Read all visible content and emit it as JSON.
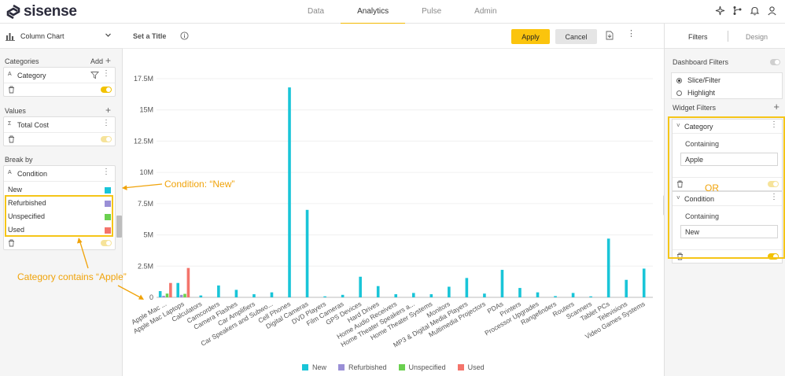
{
  "app": {
    "logo_text": "sisense",
    "nav": [
      "Data",
      "Analytics",
      "Pulse",
      "Admin"
    ],
    "nav_active": 1
  },
  "left": {
    "widget_type": "Column Chart",
    "categories": {
      "title": "Categories",
      "add_label": "Add",
      "field_type": "A",
      "field": "Category"
    },
    "values": {
      "title": "Values",
      "field_type": "Σ",
      "field": "Total Cost"
    },
    "breakby": {
      "title": "Break by",
      "field_type": "A",
      "field": "Condition",
      "items": [
        {
          "label": "New",
          "color": "#19c5d8"
        },
        {
          "label": "Refurbished",
          "color": "#9a8fd6"
        },
        {
          "label": "Unspecified",
          "color": "#6ad04f"
        },
        {
          "label": "Used",
          "color": "#f4746b"
        }
      ]
    }
  },
  "center": {
    "title_placeholder": "Set a Title",
    "apply_label": "Apply",
    "cancel_label": "Cancel"
  },
  "right": {
    "tabs": [
      "Filters",
      "Design"
    ],
    "dashboard_filters": "Dashboard Filters",
    "radio_options": [
      "Slice/Filter",
      "Highlight"
    ],
    "widget_filters": "Widget Filters",
    "filters": [
      {
        "name": "Category",
        "rule": "Containing",
        "value": "Apple"
      },
      {
        "name": "Condition",
        "rule": "Containing",
        "value": "New"
      }
    ]
  },
  "annotations": {
    "condition_note": "Condition: “New”",
    "category_note": "Category contains “Apple”",
    "or_note": "OR"
  },
  "chart_data": {
    "type": "bar",
    "ylim": [
      0,
      17500000
    ],
    "yticks": [
      0,
      2500000,
      5000000,
      7500000,
      10000000,
      12500000,
      15000000,
      17500000
    ],
    "ytick_labels": [
      "0",
      "2.5M",
      "5M",
      "7.5M",
      "10M",
      "12.5M",
      "15M",
      "17.5M"
    ],
    "categories": [
      "Apple Mac ...",
      "Apple Mac Laptops",
      "Calculators",
      "Camcorders",
      "Camera Flashes",
      "Car Amplifiers",
      "Car Speakers and Subwo...",
      "Cell Phones",
      "Digital Cameras",
      "DVD Players",
      "Film Cameras",
      "GPS Devices",
      "Hard Drives",
      "Home Audio Receivers",
      "Home Theater Speakers a...",
      "Home Theater Systems",
      "Monitors",
      "MP3 & Digital Media Players",
      "Multimedia Projectors",
      "PDAs",
      "Printers",
      "Processor Upgrades",
      "Rangefinders",
      "Routers",
      "Scanners",
      "Tablet PCs",
      "Televisions",
      "Video Games Systems"
    ],
    "series": [
      {
        "name": "New",
        "color": "#19c5d8",
        "values": [
          500000,
          1150000,
          150000,
          950000,
          600000,
          250000,
          400000,
          16800000,
          7000000,
          80000,
          200000,
          1650000,
          900000,
          250000,
          350000,
          250000,
          850000,
          1550000,
          300000,
          2200000,
          750000,
          400000,
          100000,
          350000,
          80000,
          4700000,
          1400000,
          2300000
        ]
      },
      {
        "name": "Refurbished",
        "color": "#9a8fd6",
        "values": [
          120000,
          200000,
          0,
          0,
          0,
          0,
          0,
          0,
          0,
          0,
          0,
          0,
          0,
          0,
          0,
          0,
          0,
          0,
          0,
          0,
          0,
          0,
          0,
          0,
          0,
          0,
          0,
          0
        ]
      },
      {
        "name": "Unspecified",
        "color": "#6ad04f",
        "values": [
          300000,
          280000,
          0,
          0,
          0,
          0,
          0,
          0,
          0,
          0,
          0,
          0,
          0,
          0,
          0,
          0,
          0,
          0,
          0,
          0,
          0,
          0,
          0,
          0,
          0,
          0,
          0,
          0
        ]
      },
      {
        "name": "Used",
        "color": "#f4746b",
        "values": [
          1150000,
          2350000,
          0,
          0,
          0,
          0,
          0,
          0,
          0,
          0,
          0,
          0,
          0,
          0,
          0,
          0,
          0,
          0,
          0,
          0,
          0,
          0,
          0,
          0,
          0,
          0,
          0,
          0
        ]
      }
    ]
  }
}
